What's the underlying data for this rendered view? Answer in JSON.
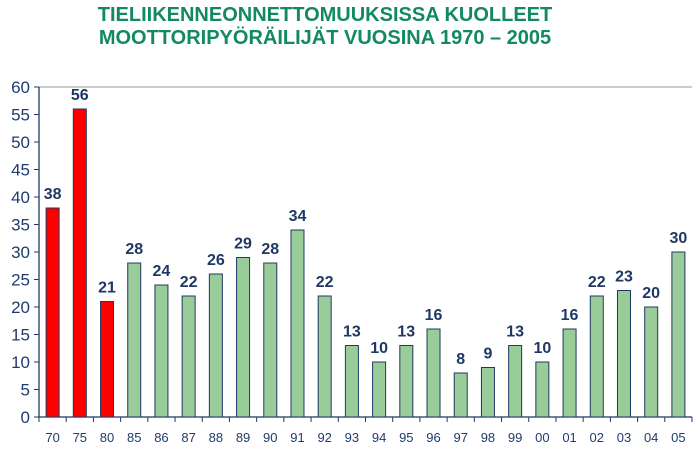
{
  "chart_data": {
    "type": "bar",
    "title": [
      "TIELIIKENNEONNETTOMUUKSISSA KUOLLEET",
      "MOOTTORIPYÖRÄILIJÄT VUOSINA 1970 – 2005"
    ],
    "xlabel": "",
    "ylabel": "",
    "ylim": [
      0,
      60
    ],
    "yticks": [
      0,
      5,
      10,
      15,
      20,
      25,
      30,
      35,
      40,
      45,
      50,
      55,
      60
    ],
    "categories": [
      "70",
      "75",
      "80",
      "85",
      "86",
      "87",
      "88",
      "89",
      "90",
      "91",
      "92",
      "93",
      "94",
      "95",
      "96",
      "97",
      "98",
      "99",
      "00",
      "01",
      "02",
      "03",
      "04",
      "05"
    ],
    "values": [
      38,
      56,
      21,
      28,
      24,
      22,
      26,
      29,
      28,
      34,
      22,
      13,
      10,
      13,
      16,
      8,
      9,
      13,
      10,
      16,
      22,
      23,
      20,
      30
    ],
    "bar_colors": [
      "#ff0000",
      "#ff0000",
      "#ff0000",
      "#99cc99",
      "#99cc99",
      "#99cc99",
      "#99cc99",
      "#99cc99",
      "#99cc99",
      "#99cc99",
      "#99cc99",
      "#99cc99",
      "#99cc99",
      "#99cc99",
      "#99cc99",
      "#99cc99",
      "#99cc99",
      "#99cc99",
      "#99cc99",
      "#99cc99",
      "#99cc99",
      "#99cc99",
      "#99cc99",
      "#99cc99"
    ],
    "grid": false,
    "legend": "none"
  }
}
